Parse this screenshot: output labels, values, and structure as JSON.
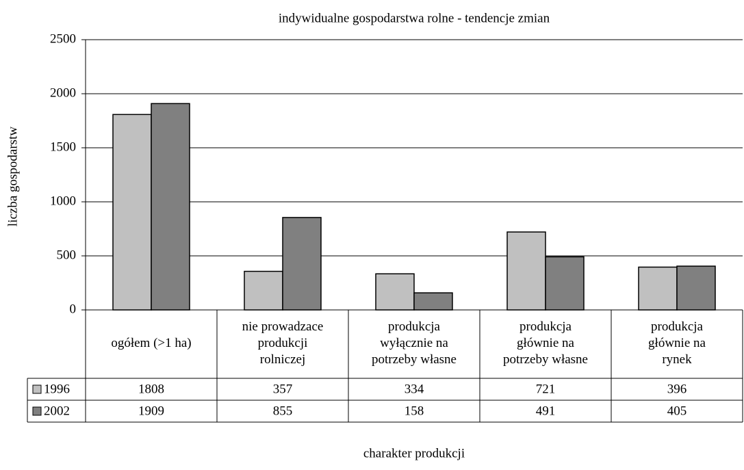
{
  "chart_data": {
    "type": "bar",
    "title": "indywidualne gospodarstwa rolne - tendencje zmian",
    "y_label": "liczba gospodarstw",
    "x_label": "charakter produkcji",
    "categories": [
      "ogółem (>1 ha)",
      "nie prowadzace\nprodukcji\nrolniczej",
      "produkcja\nwyłącznie na\npotrzeby własne",
      "produkcja\ngłównie na\npotrzeby własne",
      "produkcja\ngłównie na\nrynek"
    ],
    "series": [
      {
        "name": "1996",
        "color": "#c0c0c0",
        "values": [
          1808,
          357,
          334,
          721,
          396
        ]
      },
      {
        "name": "2002",
        "color": "#808080",
        "values": [
          1909,
          855,
          158,
          491,
          405
        ]
      }
    ],
    "ylim": [
      0,
      2500
    ],
    "yticks": [
      0,
      500,
      1000,
      1500,
      2000,
      2500
    ],
    "grid": true
  }
}
